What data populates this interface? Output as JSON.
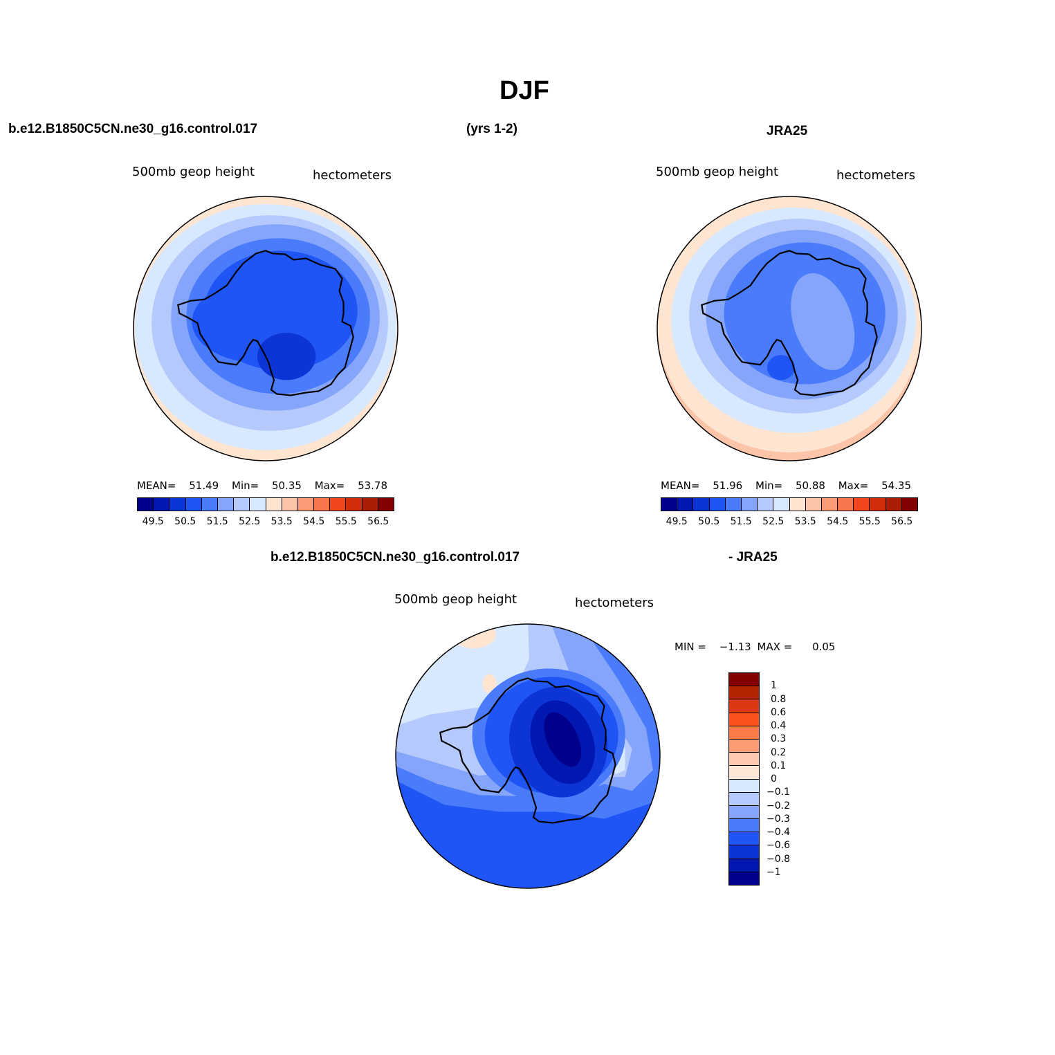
{
  "figure": {
    "title": "DJF",
    "case_name": "b.e12.B1850C5CN.ne30_g16.control.017",
    "years": "(yrs 1-2)",
    "ref_name": "JRA25",
    "diff_case_name": "b.e12.B1850C5CN.ne30_g16.control.017",
    "diff_ref_name": "- JRA25"
  },
  "panels": {
    "model": {
      "left_label": "500mb geop height",
      "right_label": "hectometers",
      "stats": {
        "mean_label": "MEAN=",
        "mean": "51.49",
        "min_label": "Min=",
        "min": "50.35",
        "max_label": "Max=",
        "max": "53.78"
      }
    },
    "obs": {
      "left_label": "500mb geop height",
      "right_label": "hectometers",
      "stats": {
        "mean_label": "MEAN=",
        "mean": "51.96",
        "min_label": "Min=",
        "min": "50.88",
        "max_label": "Max=",
        "max": "54.35"
      }
    },
    "diff": {
      "left_label": "500mb geop height",
      "right_label": "hectometers",
      "stats": {
        "min_label": "MIN =",
        "min": "−1.13",
        "max_label": "MAX =",
        "max": "0.05"
      }
    }
  },
  "colorbars": {
    "abs_colors": [
      "#00008c",
      "#0018b0",
      "#0d35d6",
      "#1f55f5",
      "#4a7bfa",
      "#85a5fb",
      "#b5c9fc",
      "#d8e8fe",
      "#fde5d2",
      "#fcc4a8",
      "#fb9b78",
      "#f8744a",
      "#f1461f",
      "#d22e0e",
      "#ac1d06",
      "#820000"
    ],
    "abs_labels": [
      "49.5",
      "50.5",
      "51.5",
      "52.5",
      "53.5",
      "54.5",
      "55.5",
      "56.5"
    ],
    "diff_colors": [
      "#820000",
      "#b32300",
      "#dd3714",
      "#fb521e",
      "#fb7a48",
      "#fb9d74",
      "#fdc8ae",
      "#fee6d6",
      "#d8e8fe",
      "#b5c9fc",
      "#85a5fb",
      "#4a7bfa",
      "#1f55f5",
      "#0d35d6",
      "#0018b0",
      "#00008c"
    ],
    "diff_labels": [
      "1",
      "0.8",
      "0.6",
      "0.4",
      "0.3",
      "0.2",
      "0.1",
      "0",
      "−0.1",
      "−0.2",
      "−0.3",
      "−0.4",
      "−0.6",
      "−0.8",
      "−1"
    ]
  }
}
